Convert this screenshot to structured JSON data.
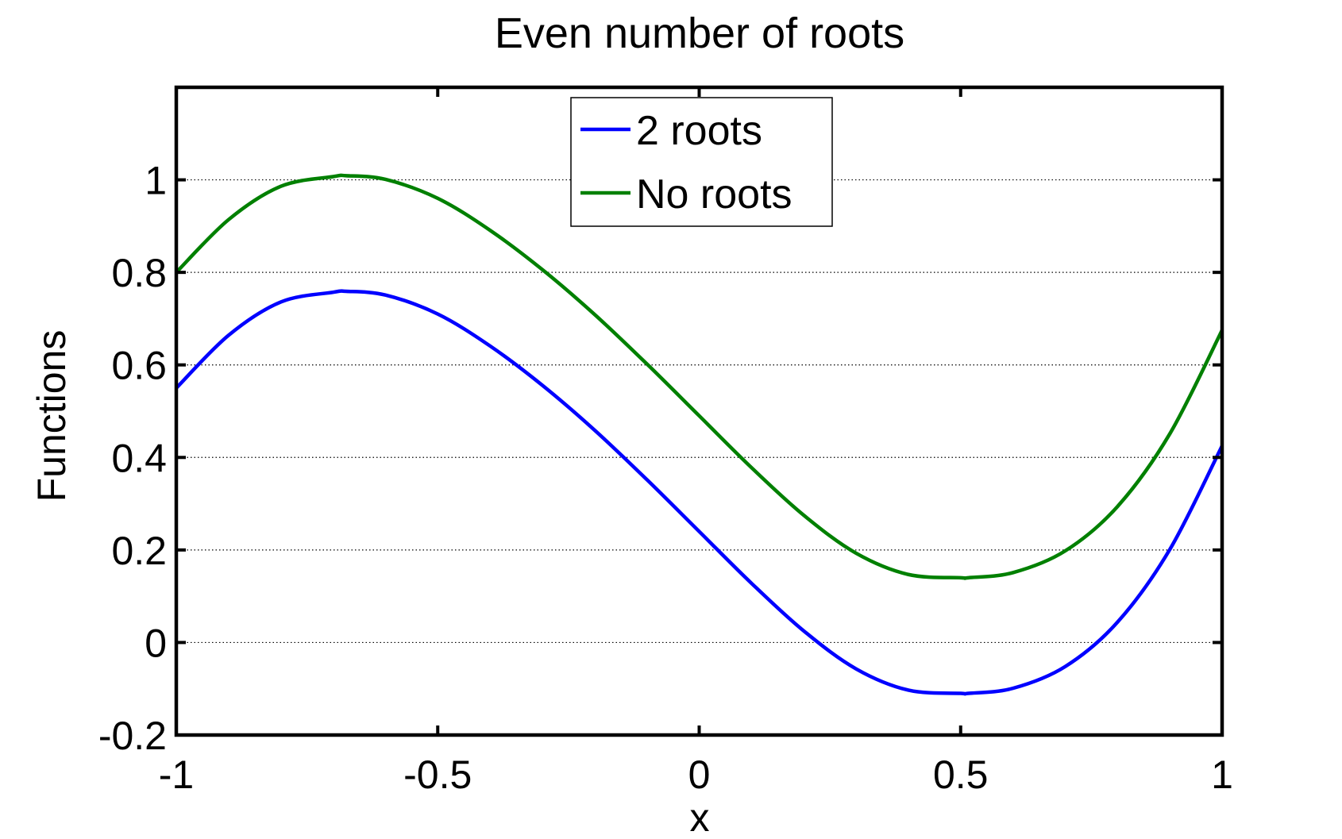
{
  "chart_data": {
    "type": "line",
    "title": "Even number of roots",
    "xlabel": "x",
    "ylabel": "Functions",
    "xlim": [
      -1,
      1
    ],
    "ylim": [
      -0.2,
      1.2
    ],
    "x_ticks": [
      -1,
      -0.5,
      0,
      0.5,
      1
    ],
    "x_tick_labels": [
      "-1",
      "-0.5",
      "0",
      "0.5",
      "1"
    ],
    "y_ticks": [
      -0.2,
      0,
      0.2,
      0.4,
      0.6,
      0.8,
      1
    ],
    "y_tick_labels": [
      "-0.2",
      "0",
      "0.2",
      "0.4",
      "0.6",
      "0.8",
      "1"
    ],
    "grid": "y-dotted",
    "legend_position": "top-center",
    "series": [
      {
        "name": "2 roots",
        "color": "#0000ff",
        "x": [
          -1,
          -0.9,
          -0.8,
          -0.7,
          -0.675,
          -0.6,
          -0.5,
          -0.4,
          -0.3,
          -0.2,
          -0.1,
          0,
          0.1,
          0.2,
          0.3,
          0.4,
          0.5,
          0.515,
          0.6,
          0.7,
          0.8,
          0.9,
          1
        ],
        "y": [
          0.55,
          0.664,
          0.736,
          0.757,
          0.759,
          0.751,
          0.71,
          0.641,
          0.556,
          0.459,
          0.352,
          0.24,
          0.128,
          0.025,
          -0.057,
          -0.103,
          -0.11,
          -0.11,
          -0.099,
          -0.052,
          0.044,
          0.201,
          0.425
        ]
      },
      {
        "name": "No roots",
        "color": "#008000",
        "x": [
          -1,
          -0.9,
          -0.8,
          -0.7,
          -0.675,
          -0.6,
          -0.5,
          -0.4,
          -0.3,
          -0.2,
          -0.1,
          0,
          0.1,
          0.2,
          0.3,
          0.4,
          0.5,
          0.515,
          0.6,
          0.7,
          0.8,
          0.9,
          1
        ],
        "y": [
          0.8,
          0.914,
          0.986,
          1.007,
          1.009,
          1.001,
          0.96,
          0.891,
          0.806,
          0.709,
          0.602,
          0.49,
          0.378,
          0.275,
          0.193,
          0.147,
          0.14,
          0.14,
          0.151,
          0.198,
          0.294,
          0.451,
          0.675
        ]
      }
    ]
  }
}
